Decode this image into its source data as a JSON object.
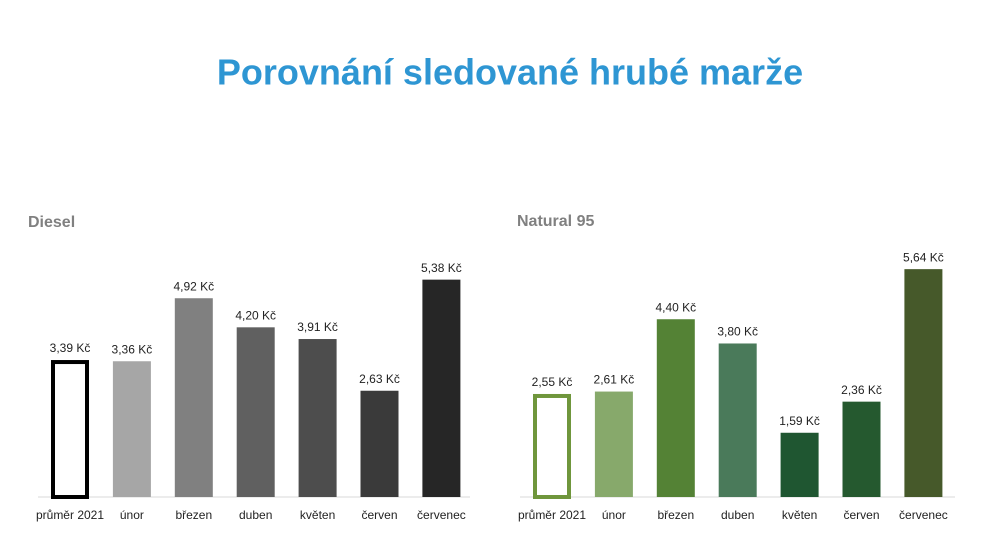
{
  "title": "Porovnání sledované hrubé marže",
  "chart_data": [
    {
      "type": "bar",
      "title": "Diesel",
      "categories": [
        "průměr 2021",
        "únor",
        "březen",
        "duben",
        "květen",
        "červen",
        "červenec"
      ],
      "values": [
        3.39,
        3.36,
        4.92,
        4.2,
        3.91,
        2.63,
        5.38
      ],
      "value_labels": [
        "3,39 Kč",
        "3,36 Kč",
        "4,92 Kč",
        "4,20 Kč",
        "3,91 Kč",
        "2,63 Kč",
        "5,38 Kč"
      ],
      "colors": [
        "#000000",
        "#a6a6a6",
        "#808080",
        "#606060",
        "#4d4d4d",
        "#3a3a3a",
        "#262626"
      ],
      "styles": [
        "outline",
        "fill",
        "fill",
        "fill",
        "fill",
        "fill",
        "fill"
      ]
    },
    {
      "type": "bar",
      "title": "Natural 95",
      "categories": [
        "průměr 2021",
        "únor",
        "březen",
        "duben",
        "květen",
        "červen",
        "červenec"
      ],
      "values": [
        2.55,
        2.61,
        4.4,
        3.8,
        1.59,
        2.36,
        5.64
      ],
      "value_labels": [
        "2,55 Kč",
        "2,61 Kč",
        "4,40 Kč",
        "3,80 Kč",
        "1,59 Kč",
        "2,36 Kč",
        "5,64 Kč"
      ],
      "colors": [
        "#6f963c",
        "#87a96b",
        "#548235",
        "#4a7a5a",
        "#1f5631",
        "#25592f",
        "#46592a"
      ],
      "styles": [
        "outline",
        "fill",
        "fill",
        "fill",
        "fill",
        "fill",
        "fill"
      ]
    }
  ]
}
